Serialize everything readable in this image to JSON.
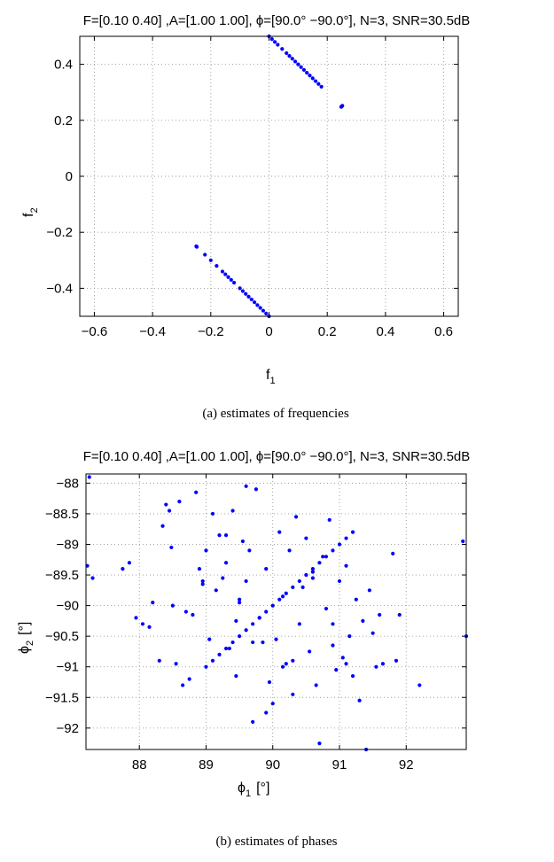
{
  "chart_data": [
    {
      "type": "scatter",
      "title": "F=[0.10  0.40] ,A=[1.00  1.00], ϕ=[90.0°   −90.0°], N=3, SNR=30.5dB",
      "xlabel": "f",
      "xlabel_sub": "1",
      "ylabel": "f",
      "ylabel_sub": "2",
      "xlim": [
        -0.65,
        0.65
      ],
      "ylim": [
        -0.5,
        0.5
      ],
      "xticks": [
        -0.6,
        -0.4,
        -0.2,
        0,
        0.2,
        0.4,
        0.6
      ],
      "xtick_labels": [
        "−0.6",
        "−0.4",
        "−0.2",
        "0",
        "0.2",
        "0.4",
        "0.6"
      ],
      "yticks": [
        0.4,
        0.2,
        0,
        -0.2,
        -0.4
      ],
      "ytick_labels": [
        "0.4",
        "0.2",
        "0",
        "−0.2",
        "−0.4"
      ],
      "grid": true,
      "caption": "(a)  estimates  of  frequencies",
      "color": "#0000ff",
      "series": [
        {
          "values": [
            [
              0.0,
              0.5
            ],
            [
              0.01,
              0.49
            ],
            [
              0.02,
              0.48
            ],
            [
              0.03,
              0.47
            ],
            [
              0.045,
              0.455
            ],
            [
              0.06,
              0.44
            ],
            [
              0.07,
              0.43
            ],
            [
              0.08,
              0.42
            ],
            [
              0.09,
              0.41
            ],
            [
              0.1,
              0.4
            ],
            [
              0.11,
              0.39
            ],
            [
              0.12,
              0.38
            ],
            [
              0.13,
              0.37
            ],
            [
              0.14,
              0.36
            ],
            [
              0.15,
              0.35
            ],
            [
              0.16,
              0.34
            ],
            [
              0.17,
              0.33
            ],
            [
              0.18,
              0.32
            ],
            [
              0.25,
              0.25
            ],
            [
              0.252,
              0.252
            ],
            [
              0.248,
              0.248
            ],
            [
              -0.25,
              -0.25
            ],
            [
              -0.248,
              -0.252
            ],
            [
              -0.22,
              -0.28
            ],
            [
              -0.2,
              -0.3
            ],
            [
              -0.18,
              -0.32
            ],
            [
              -0.16,
              -0.34
            ],
            [
              -0.15,
              -0.35
            ],
            [
              -0.14,
              -0.36
            ],
            [
              -0.13,
              -0.37
            ],
            [
              -0.12,
              -0.38
            ],
            [
              -0.1,
              -0.4
            ],
            [
              -0.09,
              -0.41
            ],
            [
              -0.08,
              -0.42
            ],
            [
              -0.07,
              -0.43
            ],
            [
              -0.06,
              -0.44
            ],
            [
              -0.05,
              -0.45
            ],
            [
              -0.04,
              -0.46
            ],
            [
              -0.03,
              -0.47
            ],
            [
              -0.02,
              -0.48
            ],
            [
              -0.01,
              -0.49
            ],
            [
              0.0,
              -0.5
            ]
          ]
        }
      ]
    },
    {
      "type": "scatter",
      "title": "F=[0.10  0.40] ,A=[1.00  1.00], ϕ=[90.0°   −90.0°], N=3, SNR=30.5dB",
      "xlabel": "ϕ",
      "xlabel_sub": "1",
      "xlabel_unit": "[°]",
      "ylabel": "ϕ",
      "ylabel_sub": "2",
      "ylabel_unit": "[°]",
      "xlim": [
        87.2,
        92.9
      ],
      "ylim": [
        -92.35,
        -87.85
      ],
      "xticks": [
        88,
        89,
        90,
        91,
        92
      ],
      "xtick_labels": [
        "88",
        "89",
        "90",
        "91",
        "92"
      ],
      "yticks": [
        -88,
        -88.5,
        -89,
        -89.5,
        -90,
        -90.5,
        -91,
        -91.5,
        -92
      ],
      "ytick_labels": [
        "−88",
        "−88.5",
        "−89",
        "−89.5",
        "−90",
        "−90.5",
        "−91",
        "−91.5",
        "−92"
      ],
      "grid": true,
      "caption": "(b)  estimates  of  phases",
      "color": "#0000ff",
      "series": [
        {
          "values": [
            [
              87.25,
              -87.9
            ],
            [
              87.22,
              -89.35
            ],
            [
              87.3,
              -89.55
            ],
            [
              87.75,
              -89.4
            ],
            [
              87.85,
              -89.3
            ],
            [
              87.95,
              -90.2
            ],
            [
              88.05,
              -90.3
            ],
            [
              88.15,
              -90.35
            ],
            [
              88.2,
              -89.95
            ],
            [
              88.3,
              -90.9
            ],
            [
              88.35,
              -88.7
            ],
            [
              88.4,
              -88.35
            ],
            [
              88.45,
              -88.45
            ],
            [
              88.48,
              -89.05
            ],
            [
              88.5,
              -90.0
            ],
            [
              88.55,
              -90.95
            ],
            [
              88.6,
              -88.3
            ],
            [
              88.65,
              -91.3
            ],
            [
              88.7,
              -90.1
            ],
            [
              88.75,
              -91.2
            ],
            [
              88.8,
              -90.15
            ],
            [
              88.85,
              -88.15
            ],
            [
              88.9,
              -89.4
            ],
            [
              88.95,
              -89.65
            ],
            [
              89.0,
              -89.1
            ],
            [
              89.05,
              -90.55
            ],
            [
              89.1,
              -88.5
            ],
            [
              89.15,
              -89.75
            ],
            [
              89.2,
              -88.85
            ],
            [
              89.25,
              -89.55
            ],
            [
              89.3,
              -89.3
            ],
            [
              89.35,
              -90.7
            ],
            [
              89.4,
              -88.45
            ],
            [
              89.45,
              -90.25
            ],
            [
              89.5,
              -89.9
            ],
            [
              89.55,
              -88.95
            ],
            [
              89.6,
              -88.05
            ],
            [
              89.65,
              -89.1
            ],
            [
              89.7,
              -91.9
            ],
            [
              89.75,
              -88.1
            ],
            [
              89.8,
              -90.2
            ],
            [
              89.85,
              -90.6
            ],
            [
              89.9,
              -89.4
            ],
            [
              89.95,
              -91.25
            ],
            [
              90.0,
              -91.6
            ],
            [
              90.05,
              -90.55
            ],
            [
              90.1,
              -88.8
            ],
            [
              90.15,
              -89.85
            ],
            [
              90.2,
              -90.95
            ],
            [
              90.25,
              -89.1
            ],
            [
              90.3,
              -91.45
            ],
            [
              90.35,
              -88.55
            ],
            [
              90.4,
              -90.3
            ],
            [
              90.45,
              -89.7
            ],
            [
              90.5,
              -88.9
            ],
            [
              90.55,
              -90.75
            ],
            [
              90.6,
              -89.45
            ],
            [
              90.65,
              -91.3
            ],
            [
              90.7,
              -92.25
            ],
            [
              90.75,
              -89.2
            ],
            [
              90.8,
              -90.05
            ],
            [
              90.85,
              -88.6
            ],
            [
              90.9,
              -90.65
            ],
            [
              90.95,
              -91.05
            ],
            [
              91.0,
              -89.6
            ],
            [
              91.05,
              -90.85
            ],
            [
              91.1,
              -89.35
            ],
            [
              91.15,
              -90.5
            ],
            [
              91.2,
              -91.15
            ],
            [
              91.25,
              -89.9
            ],
            [
              91.3,
              -91.55
            ],
            [
              91.35,
              -90.25
            ],
            [
              91.4,
              -92.35
            ],
            [
              91.45,
              -89.75
            ],
            [
              91.5,
              -90.45
            ],
            [
              91.55,
              -91.0
            ],
            [
              91.6,
              -90.15
            ],
            [
              91.65,
              -90.95
            ],
            [
              91.8,
              -89.15
            ],
            [
              91.85,
              -90.9
            ],
            [
              91.9,
              -90.15
            ],
            [
              92.2,
              -91.3
            ],
            [
              92.85,
              -88.95
            ],
            [
              92.9,
              -90.5
            ],
            [
              89.3,
              -88.85
            ],
            [
              89.5,
              -89.95
            ],
            [
              89.7,
              -90.6
            ],
            [
              90.6,
              -89.55
            ],
            [
              90.3,
              -90.9
            ],
            [
              89.9,
              -91.75
            ],
            [
              90.9,
              -90.3
            ],
            [
              89.6,
              -89.6
            ],
            [
              90.15,
              -91.0
            ],
            [
              91.1,
              -90.95
            ],
            [
              88.95,
              -89.6
            ],
            [
              89.45,
              -91.15
            ]
          ]
        },
        {
          "values": [
            [
              89.0,
              -91.0
            ],
            [
              89.1,
              -90.9
            ],
            [
              89.2,
              -90.8
            ],
            [
              89.3,
              -90.7
            ],
            [
              89.4,
              -90.6
            ],
            [
              89.5,
              -90.5
            ],
            [
              89.6,
              -90.4
            ],
            [
              89.7,
              -90.3
            ],
            [
              89.8,
              -90.2
            ],
            [
              89.9,
              -90.1
            ],
            [
              90.0,
              -90.0
            ],
            [
              90.1,
              -89.9
            ],
            [
              90.2,
              -89.8
            ],
            [
              90.3,
              -89.7
            ],
            [
              90.4,
              -89.6
            ],
            [
              90.5,
              -89.5
            ],
            [
              90.6,
              -89.4
            ],
            [
              90.7,
              -89.3
            ],
            [
              90.8,
              -89.2
            ],
            [
              90.9,
              -89.1
            ],
            [
              91.0,
              -89.0
            ],
            [
              91.1,
              -88.9
            ],
            [
              91.2,
              -88.8
            ]
          ]
        }
      ]
    }
  ]
}
